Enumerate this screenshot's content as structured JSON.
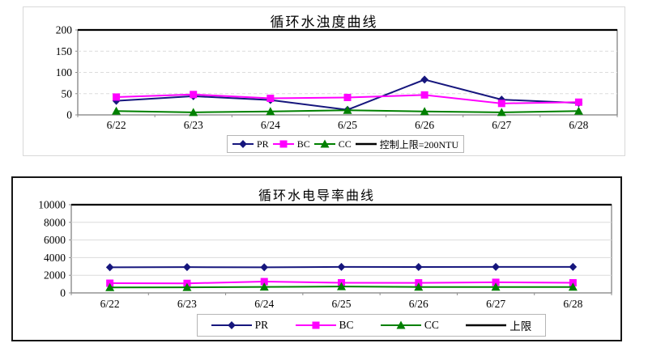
{
  "page": {
    "background": "#ffffff"
  },
  "chart_data": [
    {
      "type": "line",
      "title": "循环水浊度曲线",
      "categories": [
        "6/22",
        "6/23",
        "6/24",
        "6/25",
        "6/26",
        "6/27",
        "6/28"
      ],
      "ylim": [
        0,
        200
      ],
      "yticks": [
        0,
        50,
        100,
        150,
        200
      ],
      "grid": "dashed",
      "legend_position": "bottom",
      "series": [
        {
          "name": "PR",
          "marker": "diamond",
          "color": "#16167d",
          "values": [
            33,
            44,
            35,
            12,
            83,
            36,
            28
          ]
        },
        {
          "name": "BC",
          "marker": "square",
          "color": "#ff00ff",
          "values": [
            42,
            48,
            39,
            41,
            47,
            27,
            30
          ]
        },
        {
          "name": "CC",
          "marker": "triangle",
          "color": "#008000",
          "values": [
            9,
            6,
            8,
            11,
            8,
            6,
            9
          ]
        },
        {
          "name": "控制上限=200NTU",
          "marker": "line",
          "color": "#000000",
          "values": [
            200,
            200,
            200,
            200,
            200,
            200,
            200
          ]
        }
      ]
    },
    {
      "type": "line",
      "title": "循环水电导率曲线",
      "categories": [
        "6/22",
        "6/23",
        "6/24",
        "6/25",
        "6/26",
        "6/27",
        "6/28"
      ],
      "ylim": [
        0,
        10000
      ],
      "yticks": [
        0,
        2000,
        4000,
        6000,
        8000,
        10000
      ],
      "grid": "solid",
      "legend_position": "bottom",
      "series": [
        {
          "name": "PR",
          "marker": "diamond",
          "color": "#16167d",
          "values": [
            2900,
            2920,
            2900,
            2950,
            2940,
            2950,
            2950
          ]
        },
        {
          "name": "BC",
          "marker": "square",
          "color": "#ff00ff",
          "values": [
            1100,
            1080,
            1280,
            1150,
            1140,
            1200,
            1150
          ]
        },
        {
          "name": "CC",
          "marker": "triangle",
          "color": "#008000",
          "values": [
            620,
            630,
            680,
            720,
            670,
            660,
            670
          ]
        },
        {
          "name": "上限",
          "marker": "line",
          "color": "#000000",
          "values": [
            10000,
            10000,
            10000,
            10000,
            10000,
            10000,
            10000
          ]
        }
      ]
    }
  ]
}
